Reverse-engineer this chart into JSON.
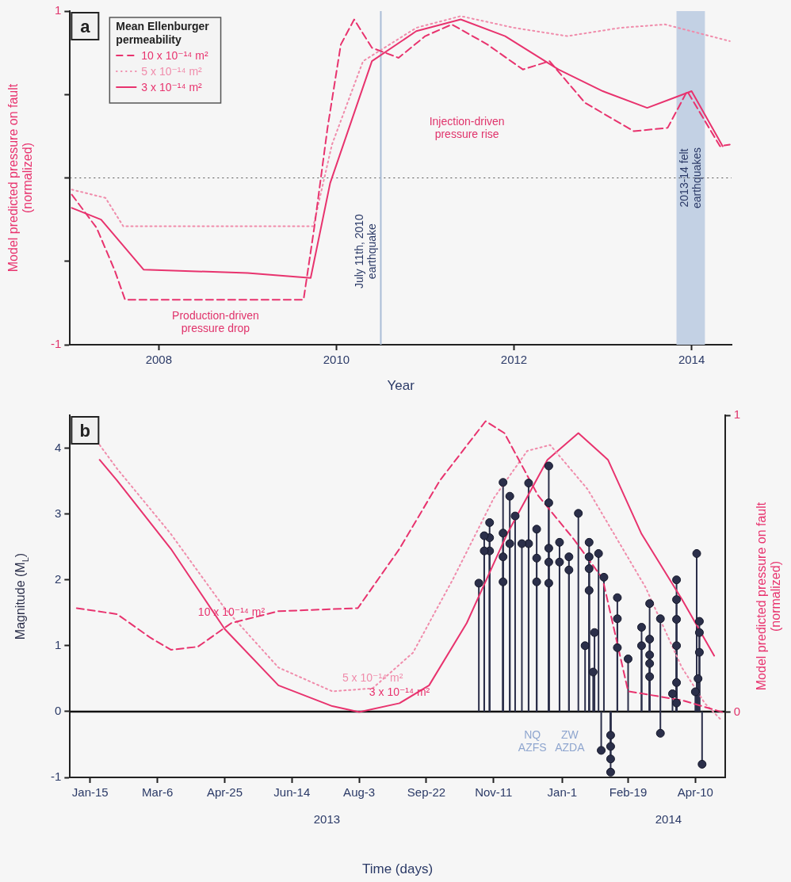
{
  "chart_data": [
    {
      "type": "line",
      "xlabel": "Year",
      "ylabel": "Model predicted pressure on fault (normalized)",
      "legend": "top left",
      "legend_title": "Mean Ellenburger permeability",
      "xlim": [
        2007,
        2014.45
      ],
      "xticks": [
        2008,
        2010,
        2012,
        2014
      ],
      "ylim": [
        -1,
        1
      ],
      "yticks": [
        -1,
        {
          "value": -0.5,
          "label": null
        },
        {
          "value": 0,
          "label": null
        },
        {
          "value": 0.5,
          "label": null
        },
        1
      ],
      "ref_lines": [
        {
          "axis": "y",
          "value": 0,
          "line_style": "dotted",
          "color": "#555555"
        },
        {
          "axis": "x",
          "value": 2010.5,
          "label": "July 11th, 2010\nearthquake",
          "color": "#a9bcd6"
        }
      ],
      "bands": [
        {
          "axis": "x",
          "from": 2013.83,
          "to": 2014.15,
          "label": "2013-14 felt\nearthquakes",
          "color": "#c3d1e4"
        }
      ],
      "annotations": [
        "a",
        "Injection-driven pressure rise",
        "Production-driven pressure drop"
      ],
      "series": [
        {
          "name": "10 x 10⁻¹⁴ m²",
          "color": "#e8336e",
          "line_style": "dashed",
          "x": [
            2007.02,
            2007.3,
            2007.5,
            2007.62,
            2008.5,
            2009.63,
            2009.75,
            2009.9,
            2010.05,
            2010.2,
            2010.4,
            2010.7,
            2011.0,
            2011.3,
            2011.7,
            2012.1,
            2012.4,
            2012.8,
            2013.35,
            2013.73,
            2013.95,
            2014.32,
            2014.43
          ],
          "values": [
            -0.1,
            -0.3,
            -0.55,
            -0.73,
            -0.73,
            -0.73,
            -0.3,
            0.3,
            0.8,
            0.95,
            0.78,
            0.72,
            0.85,
            0.92,
            0.8,
            0.65,
            0.7,
            0.45,
            0.28,
            0.3,
            0.52,
            0.19,
            0.2
          ]
        },
        {
          "name": "5 x 10⁻¹⁴ m²",
          "color": "#f08cab",
          "line_style": "dotted",
          "x": [
            2007.02,
            2007.4,
            2007.6,
            2009.74,
            2009.95,
            2010.3,
            2010.9,
            2011.4,
            2012.0,
            2012.6,
            2013.2,
            2013.7,
            2014.43
          ],
          "values": [
            -0.07,
            -0.12,
            -0.29,
            -0.29,
            0.2,
            0.7,
            0.9,
            0.97,
            0.9,
            0.85,
            0.9,
            0.92,
            0.82
          ]
        },
        {
          "name": "3 x 10⁻¹⁴ m²",
          "color": "#e8336e",
          "line_style": "solid",
          "x": [
            2007.02,
            2007.35,
            2007.83,
            2009.0,
            2009.71,
            2009.93,
            2010.4,
            2010.9,
            2011.4,
            2011.9,
            2012.5,
            2013.0,
            2013.5,
            2013.8,
            2014.0,
            2014.35
          ],
          "values": [
            -0.18,
            -0.25,
            -0.55,
            -0.57,
            -0.6,
            -0.03,
            0.7,
            0.88,
            0.95,
            0.85,
            0.65,
            0.52,
            0.42,
            0.48,
            0.52,
            0.19
          ]
        }
      ]
    },
    {
      "type": "lollipop",
      "xlabel": "Time (days)",
      "ylabel": "Magnitude (M$_{L}$)",
      "y2label": "Model predicted pressure on fault (normalized)",
      "xlim": [
        "2012-12-31",
        "2014-05-02"
      ],
      "xticks": [
        {
          "value": "2013-01-15",
          "label": "Jan-15"
        },
        {
          "value": "2013-03-06",
          "label": "Mar-6"
        },
        {
          "value": "2013-04-25",
          "label": "Apr-25"
        },
        {
          "value": "2013-06-14",
          "label": "Jun-14"
        },
        {
          "value": "2013-08-03",
          "label": "Aug-3"
        },
        {
          "value": "2013-09-22",
          "label": "Sep-22"
        },
        {
          "value": "2013-11-11",
          "label": "Nov-11"
        },
        {
          "value": "2014-01-01",
          "label": "Jan-1"
        },
        {
          "value": "2014-02-19",
          "label": "Feb-19"
        },
        {
          "value": "2014-04-10",
          "label": "Apr-10"
        }
      ],
      "x2lim": [
        "2012-12-31",
        "2014-05-02"
      ],
      "x2ticks": [
        {
          "value": "2013-07-10",
          "label": "2013"
        },
        {
          "value": "2014-03-21",
          "label": "2014"
        }
      ],
      "ylim": [
        -1,
        4.5
      ],
      "yticks": [
        -1,
        0,
        1,
        2,
        3,
        4
      ],
      "y2lim": [
        -0.22,
        1
      ],
      "y2ticks": [
        0,
        1
      ],
      "ref_lines": [
        {
          "axis": "y",
          "value": 0,
          "color": "#111111"
        }
      ],
      "annotations": [
        "b",
        "NQ\nAZFS",
        "ZW\nAZDA"
      ],
      "series": [
        {
          "color": "#2b2f4a",
          "marker": "circle",
          "x": [
            "2014-04-11",
            "2014-04-15",
            "2014-04-13",
            "2014-04-13",
            "2014-04-13",
            "2014-04-12",
            "2014-04-10",
            "2014-03-27",
            "2014-03-27",
            "2014-03-27",
            "2014-03-27",
            "2014-03-27",
            "2014-03-27",
            "2014-03-24",
            "2014-03-15",
            "2014-03-15",
            "2014-03-07",
            "2014-03-07",
            "2014-03-07",
            "2014-03-07",
            "2014-03-07",
            "2014-03-01",
            "2014-03-01",
            "2014-02-19",
            "2014-02-11",
            "2014-02-11",
            "2014-02-11",
            "2014-02-06",
            "2014-02-06",
            "2014-02-06",
            "2014-02-06",
            "2014-02-01",
            "2014-01-30",
            "2014-01-28",
            "2014-01-25",
            "2014-01-24",
            "2014-01-21",
            "2014-01-21",
            "2014-01-21",
            "2014-01-21",
            "2014-01-18",
            "2014-01-13",
            "2014-01-06",
            "2014-01-06",
            "2013-12-30",
            "2013-12-30",
            "2013-12-22",
            "2013-12-22",
            "2013-12-22",
            "2013-12-22",
            "2013-12-22",
            "2013-12-13",
            "2013-12-13",
            "2013-12-13",
            "2013-12-07",
            "2013-12-07",
            "2013-12-02",
            "2013-11-27",
            "2013-11-23",
            "2013-11-23",
            "2013-11-18",
            "2013-11-18",
            "2013-11-18",
            "2013-11-18",
            "2013-11-08",
            "2013-11-08",
            "2013-11-08",
            "2013-11-04",
            "2013-11-04",
            "2013-10-31"
          ],
          "values": [
            2.4,
            -0.8,
            1.37,
            1.2,
            0.9,
            0.5,
            0.3,
            2.0,
            1.7,
            1.4,
            1.0,
            0.44,
            0.13,
            0.27,
            1.41,
            -0.33,
            1.64,
            1.1,
            0.86,
            0.73,
            0.53,
            1.28,
            1.0,
            0.8,
            1.73,
            1.41,
            0.97,
            -0.36,
            -0.53,
            -0.72,
            -0.92,
            2.04,
            -0.59,
            2.4,
            1.2,
            0.6,
            2.57,
            2.35,
            2.17,
            1.84,
            1.0,
            3.01,
            2.35,
            2.15,
            2.57,
            2.27,
            3.73,
            3.17,
            2.48,
            2.27,
            1.95,
            2.77,
            2.33,
            1.97,
            3.47,
            2.55,
            2.55,
            2.97,
            3.27,
            2.55,
            3.48,
            2.71,
            2.35,
            1.97,
            2.87,
            2.64,
            2.44,
            2.44,
            2.67,
            1.95
          ]
        },
        {
          "type": "line",
          "axis": "y2",
          "name": "10 x 10⁻¹⁴ m²",
          "color": "#e8336e",
          "line_style": "dashed",
          "x": [
            "2013-01-05",
            "2013-02-04",
            "2013-03-01",
            "2013-03-16",
            "2013-04-05",
            "2013-04-30",
            "2013-06-04",
            "2013-08-02",
            "2013-09-02",
            "2013-10-02",
            "2013-11-05",
            "2013-11-19",
            "2013-12-14",
            "2014-01-10",
            "2014-01-31",
            "2014-02-19",
            "2014-03-31",
            "2014-04-30"
          ],
          "values": [
            0.35,
            0.33,
            0.25,
            0.21,
            0.22,
            0.3,
            0.34,
            0.35,
            0.55,
            0.78,
            0.98,
            0.94,
            0.73,
            0.58,
            0.45,
            0.07,
            0.04,
            0.0
          ]
        },
        {
          "type": "line",
          "axis": "y2",
          "name": "5 x 10⁻¹⁴ m²",
          "color": "#f08cab",
          "line_style": "dotted",
          "x": [
            "2013-01-22",
            "2013-02-04",
            "2013-03-16",
            "2013-04-25",
            "2013-06-04",
            "2013-07-14",
            "2013-08-13",
            "2013-09-12",
            "2013-10-12",
            "2013-11-11",
            "2013-12-06",
            "2013-12-23",
            "2014-01-20",
            "2014-03-04",
            "2014-03-31",
            "2014-04-17",
            "2014-04-30"
          ],
          "values": [
            0.9,
            0.82,
            0.6,
            0.35,
            0.15,
            0.07,
            0.08,
            0.2,
            0.45,
            0.72,
            0.88,
            0.9,
            0.75,
            0.42,
            0.15,
            0.03,
            -0.03
          ]
        },
        {
          "type": "line",
          "axis": "y2",
          "name": "3 x 10⁻¹⁴ m²",
          "color": "#e8336e",
          "line_style": "solid",
          "x": [
            "2013-01-22",
            "2013-02-04",
            "2013-03-16",
            "2013-04-25",
            "2013-06-04",
            "2013-07-14",
            "2013-08-03",
            "2013-09-02",
            "2013-09-24",
            "2013-10-22",
            "2013-11-21",
            "2013-12-21",
            "2014-01-13",
            "2014-02-04",
            "2014-03-01",
            "2014-03-31",
            "2014-04-24"
          ],
          "values": [
            0.85,
            0.78,
            0.55,
            0.28,
            0.09,
            0.02,
            0.0,
            0.03,
            0.09,
            0.3,
            0.6,
            0.85,
            0.94,
            0.85,
            0.6,
            0.38,
            0.19
          ]
        }
      ]
    }
  ]
}
